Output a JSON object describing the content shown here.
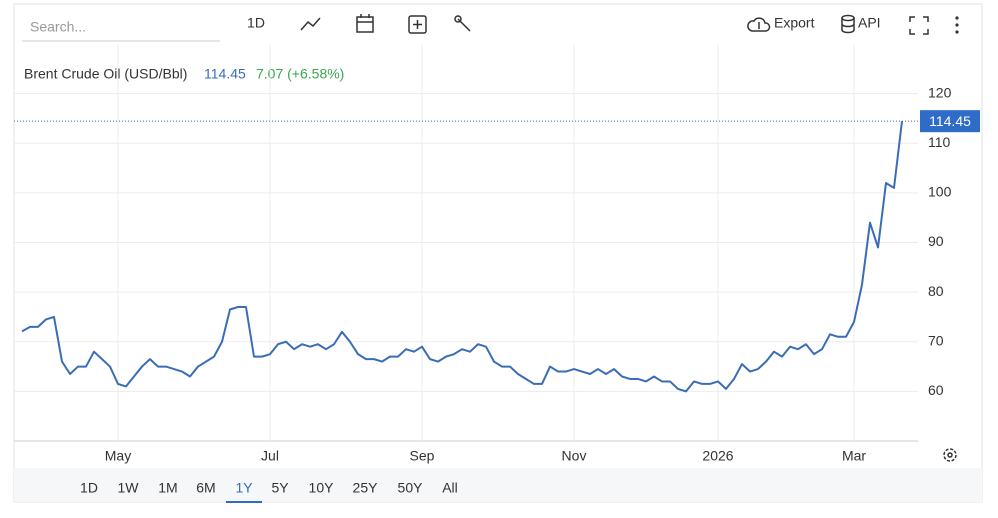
{
  "toolbar": {
    "search_placeholder": "Search...",
    "interval": "1D",
    "export": "Export",
    "api": "API"
  },
  "chart_data": {
    "type": "line",
    "title": "Brent Crude Oil (USD/Bbl)",
    "change": "7.07 (+6.58%)",
    "categories": [
      null,
      null,
      null,
      null,
      null,
      null,
      null,
      null,
      null,
      null,
      null,
      null,
      "May",
      null,
      null,
      null,
      null,
      null,
      null,
      null,
      null,
      null,
      null,
      null,
      null,
      null,
      null,
      null,
      null,
      null,
      null,
      "Jul",
      null,
      null,
      null,
      null,
      null,
      null,
      null,
      null,
      null,
      null,
      null,
      null,
      null,
      null,
      null,
      null,
      null,
      null,
      "Sep",
      null,
      null,
      null,
      null,
      null,
      null,
      null,
      null,
      null,
      null,
      null,
      null,
      null,
      null,
      null,
      null,
      null,
      null,
      "Nov",
      null,
      null,
      null,
      null,
      null,
      null,
      null,
      null,
      null,
      null,
      null,
      null,
      null,
      null,
      null,
      null,
      null,
      "2026",
      null,
      null,
      null,
      null,
      null,
      null,
      null,
      null,
      null,
      null,
      null,
      null,
      null,
      null,
      null,
      null,
      "Mar",
      null,
      null,
      null,
      null,
      null,
      null
    ],
    "series": [
      {
        "name": "Brent Crude Oil",
        "color": "#3a6db5",
        "values": [
          72.1,
          73,
          73,
          74.5,
          75,
          66,
          63.5,
          65,
          65,
          68,
          66.5,
          65,
          61.5,
          61,
          63,
          65,
          66.5,
          65,
          65,
          64.5,
          64,
          63,
          65,
          66,
          67,
          70,
          76.5,
          77,
          77,
          67,
          67,
          67.5,
          69.5,
          70,
          68.5,
          69.5,
          69,
          69.5,
          68.5,
          69.5,
          72,
          70,
          67.5,
          66.5,
          66.5,
          66,
          67,
          67,
          68.5,
          68,
          69,
          66.5,
          66,
          67,
          67.5,
          68.5,
          68,
          69.5,
          69,
          66,
          65,
          65,
          63.5,
          62.5,
          61.5,
          61.5,
          65,
          64,
          64,
          64.5,
          64,
          63.5,
          64.5,
          63.5,
          64.5,
          63,
          62.5,
          62.5,
          62,
          63,
          62,
          62,
          60.5,
          60,
          62,
          61.5,
          61.5,
          62,
          60.5,
          62.5,
          65.5,
          64,
          64.5,
          66,
          68,
          67,
          69,
          68.5,
          69.5,
          67.5,
          68.5,
          71.5,
          71,
          71,
          74,
          81.5,
          94,
          89,
          102,
          101,
          114.45
        ]
      }
    ],
    "ylim": [
      50,
      130
    ],
    "yticks": [
      60,
      70,
      80,
      90,
      100,
      110,
      120
    ],
    "grid": true
  },
  "range_buttons": [
    "1D",
    "1W",
    "1M",
    "6M",
    "1Y",
    "5Y",
    "10Y",
    "25Y",
    "50Y",
    "All"
  ],
  "active_range": 4
}
